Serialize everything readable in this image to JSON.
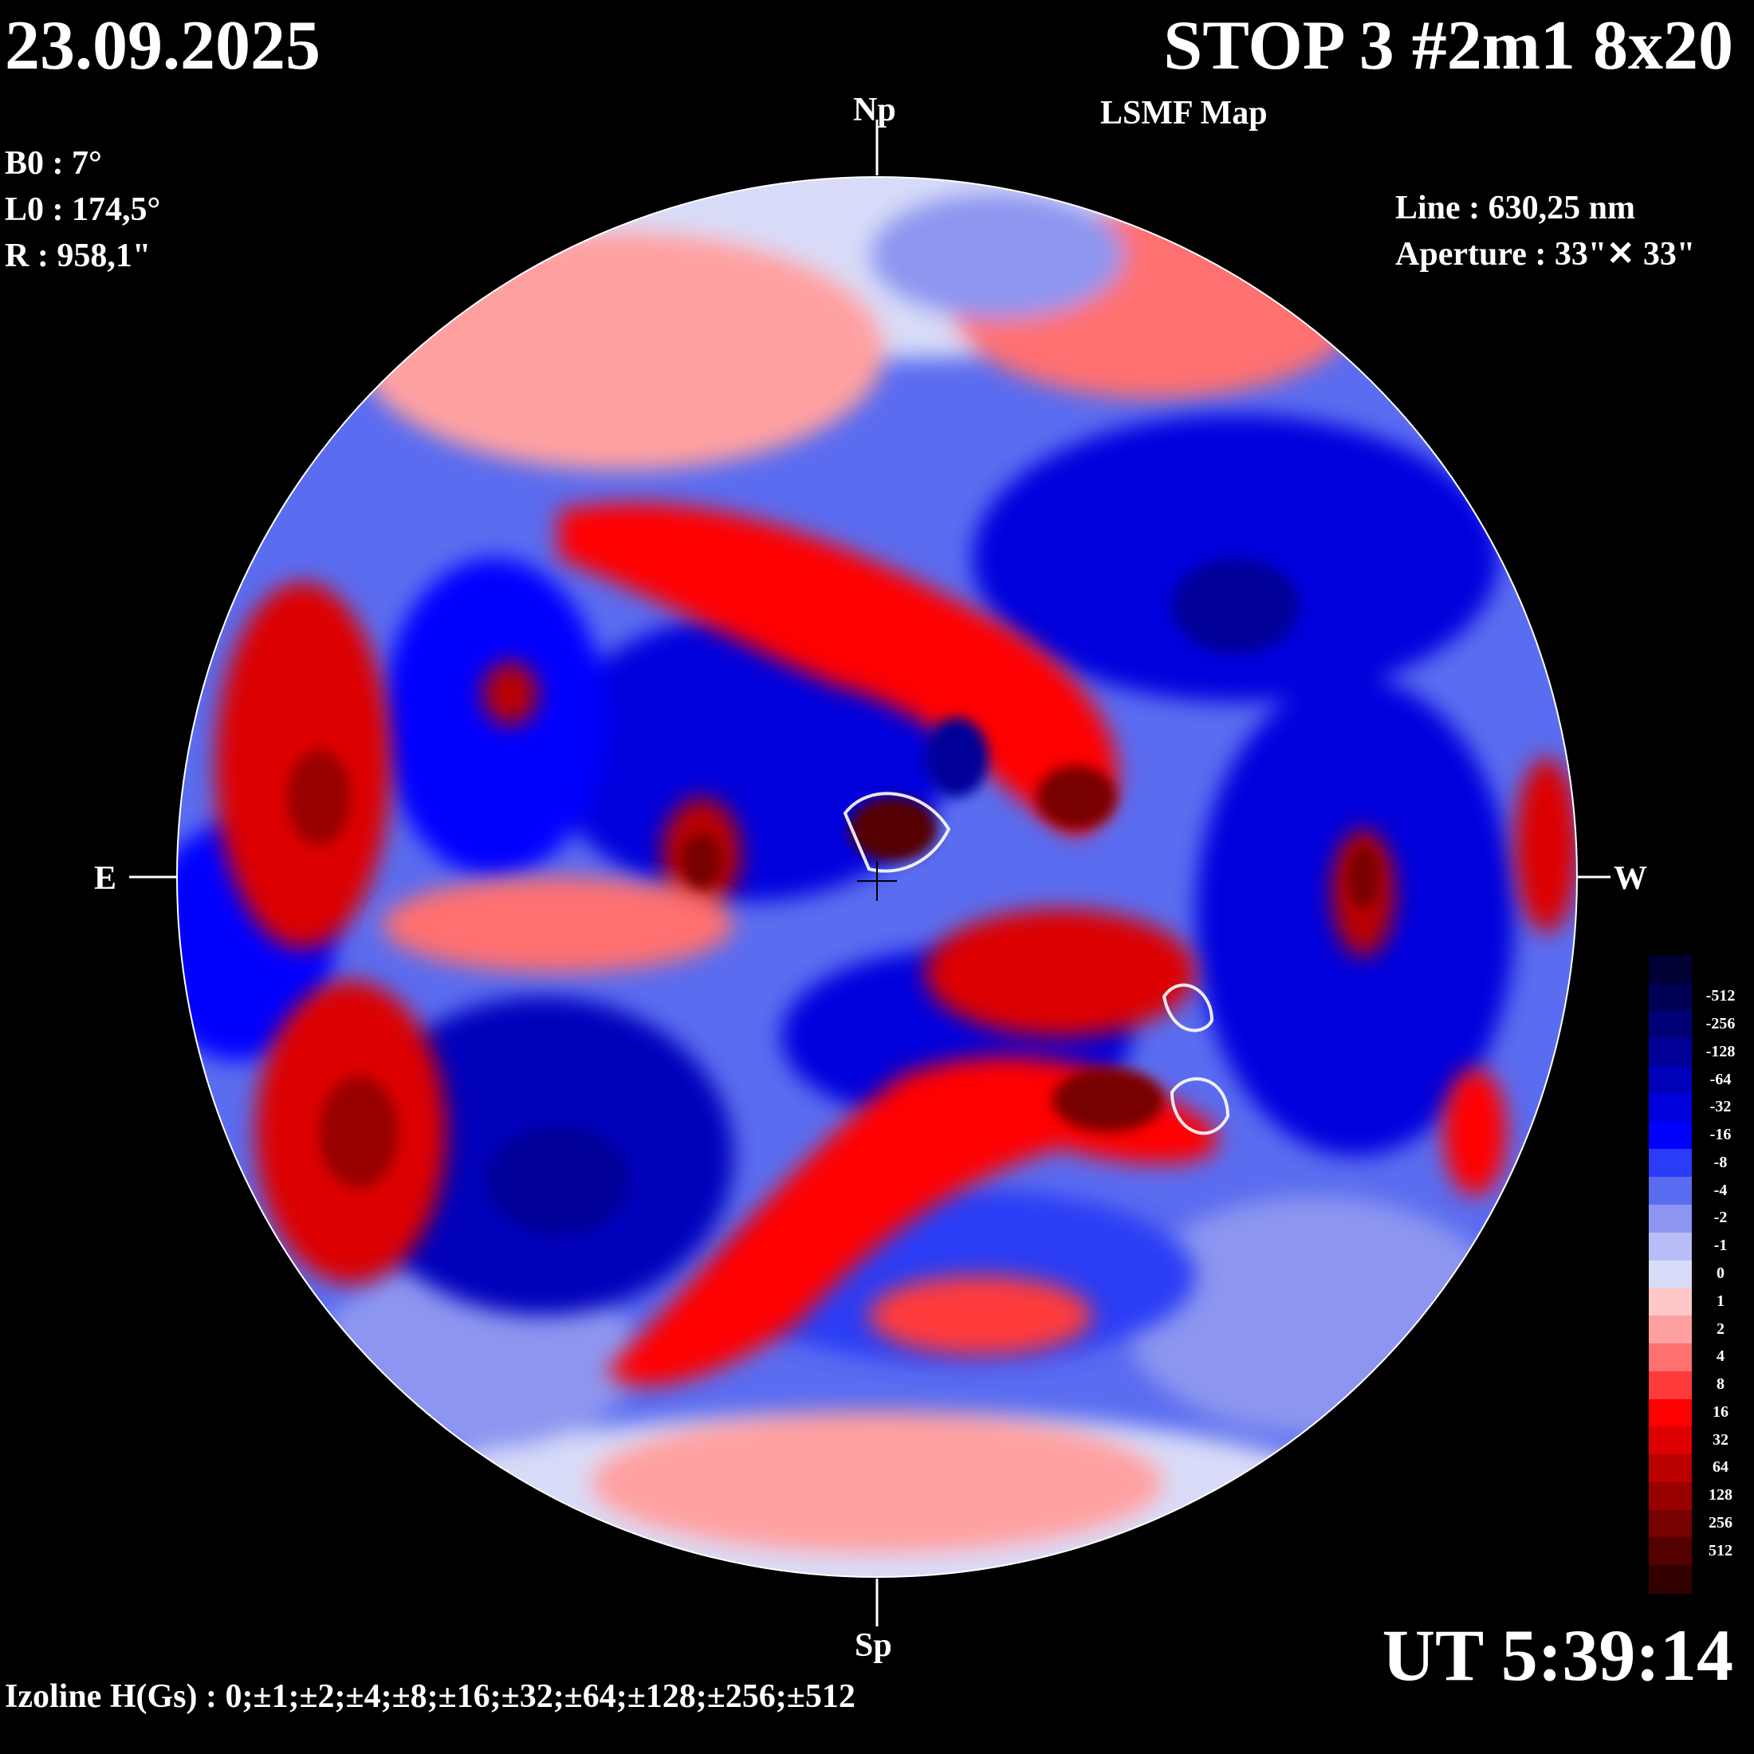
{
  "header": {
    "date": "23.09.2025",
    "title": "STOP 3 #2m1 8x20",
    "subtitle": "LSMF  Map"
  },
  "params": {
    "b0": "B0 : 7°",
    "l0": "L0 : 174,5°",
    "r": "R  : 958,1\""
  },
  "line_info": {
    "line": "Line :  630,25 nm",
    "aperture": "Aperture : 33\"✕ 33\""
  },
  "directions": {
    "north": "Np",
    "south": "Sp",
    "east": "E",
    "west": "W"
  },
  "footer": {
    "ut": "UT 5:39:14",
    "izoline": "Izoline H(Gs) : 0;±1;±2;±4;±8;±16;±32;±64;±128;±256;±512"
  },
  "legend": {
    "levels": [
      {
        "label": "",
        "color": "#000033"
      },
      {
        "label": "-512",
        "color": "#000055"
      },
      {
        "label": "-256",
        "color": "#000077"
      },
      {
        "label": "-128",
        "color": "#000099"
      },
      {
        "label": "-64",
        "color": "#0000bb"
      },
      {
        "label": "-32",
        "color": "#0000dd"
      },
      {
        "label": "-16",
        "color": "#0000ff"
      },
      {
        "label": "-8",
        "color": "#2a3cf5"
      },
      {
        "label": "-4",
        "color": "#5a6cf0"
      },
      {
        "label": "-2",
        "color": "#8c96f0"
      },
      {
        "label": "-1",
        "color": "#b8bef5"
      },
      {
        "label": "0",
        "color": "#d8dcf8"
      },
      {
        "label": "1",
        "color": "#ffc8c8"
      },
      {
        "label": "2",
        "color": "#ffa0a0"
      },
      {
        "label": "4",
        "color": "#ff7070"
      },
      {
        "label": "8",
        "color": "#ff3a3a"
      },
      {
        "label": "16",
        "color": "#ff0000"
      },
      {
        "label": "32",
        "color": "#dd0000"
      },
      {
        "label": "64",
        "color": "#bb0000"
      },
      {
        "label": "128",
        "color": "#990000"
      },
      {
        "label": "256",
        "color": "#770000"
      },
      {
        "label": "512",
        "color": "#550000"
      },
      {
        "label": "",
        "color": "#330000"
      }
    ]
  }
}
